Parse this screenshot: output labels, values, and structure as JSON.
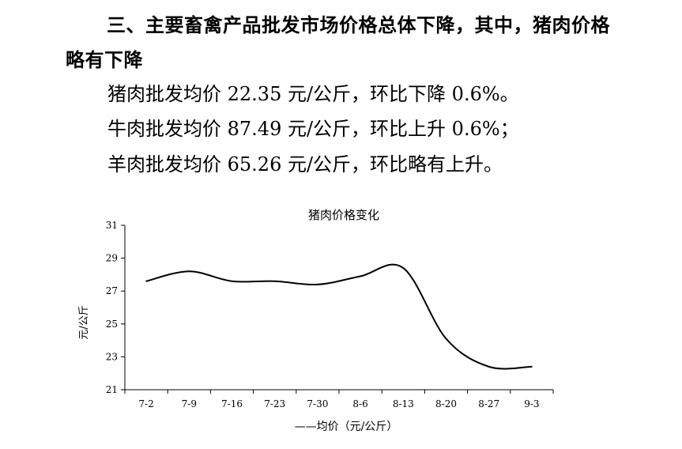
{
  "section": {
    "heading": "三、主要畜禽产品批发市场价格总体下降，其中，猪肉价格略有下降"
  },
  "paragraphs": [
    {
      "label": "猪肉批发均价",
      "text": " 22.35 元/公斤，环比下降 0.6%。"
    },
    {
      "label": "牛肉批发均价",
      "text": " 87.49 元/公斤，环比上升 0.6%；"
    },
    {
      "label": "羊肉批发均价",
      "text": " 65.26 元/公斤，环比略有上升。"
    }
  ],
  "chart_data": {
    "type": "line",
    "title": "猪肉价格变化",
    "ylabel": "元/公斤",
    "xlabel": "",
    "categories": [
      "7-2",
      "7-9",
      "7-16",
      "7-23",
      "7-30",
      "8-6",
      "8-13",
      "8-20",
      "8-27",
      "9-3"
    ],
    "ylim": [
      21,
      31
    ],
    "yticks": [
      21,
      23,
      25,
      27,
      29,
      31
    ],
    "grid": false,
    "legend_position": "bottom",
    "line_color": "#000000",
    "series": [
      {
        "name": "——均价（元/公斤）",
        "values": [
          27.6,
          28.2,
          27.6,
          27.6,
          27.4,
          27.9,
          28.4,
          24.1,
          22.4,
          22.4
        ]
      }
    ]
  }
}
